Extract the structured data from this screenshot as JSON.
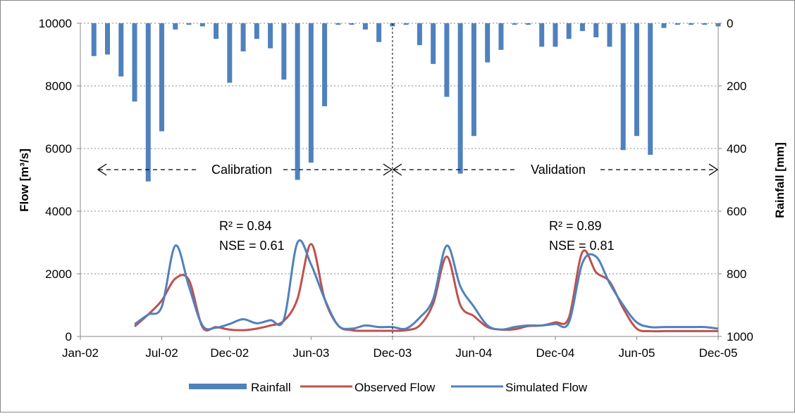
{
  "chart_data": {
    "type": "bar+line",
    "title": "",
    "xlabel": "",
    "ylabel": "Flow [m³/s]",
    "ylabel_right": "Rainfall [mm]",
    "ylim": [
      0,
      10000
    ],
    "ylim_right": [
      1000,
      0
    ],
    "y2_inverted": true,
    "xlim": [
      "2002-01",
      "2005-12"
    ],
    "x_ticks": [
      "Jan-02",
      "Jul-02",
      "Dec-02",
      "Jun-03",
      "Dec-03",
      "Jun-04",
      "Dec-04",
      "Jun-05",
      "Dec-05"
    ],
    "y_ticks": [
      "0",
      "2000",
      "4000",
      "6000",
      "8000",
      "10000"
    ],
    "y2_ticks": [
      "0",
      "200",
      "400",
      "600",
      "800",
      "1000"
    ],
    "grid": true,
    "legend": {
      "position": "bottom",
      "entries": [
        "Rainfall",
        "Observed Flow",
        "Simulated Flow"
      ]
    },
    "colors": {
      "rainfall": "#4F81BD",
      "observed": "#C0504D",
      "simulated": "#4F81BD"
    },
    "bars": {
      "series": "Rainfall",
      "months": [
        "2002-02",
        "2002-03",
        "2002-04",
        "2002-05",
        "2002-06",
        "2002-07",
        "2002-08",
        "2002-09",
        "2002-10",
        "2002-11",
        "2002-12",
        "2003-01",
        "2003-02",
        "2003-03",
        "2003-04",
        "2003-05",
        "2003-06",
        "2003-07",
        "2003-08",
        "2003-09",
        "2003-10",
        "2003-11",
        "2003-12",
        "2004-01",
        "2004-02",
        "2004-03",
        "2004-04",
        "2004-05",
        "2004-06",
        "2004-07",
        "2004-08",
        "2004-09",
        "2004-10",
        "2004-11",
        "2004-12",
        "2005-01",
        "2005-02",
        "2005-03",
        "2005-04",
        "2005-05",
        "2005-06",
        "2005-07",
        "2005-08",
        "2005-09",
        "2005-10",
        "2005-11",
        "2005-12"
      ],
      "values": [
        105,
        100,
        170,
        250,
        505,
        345,
        20,
        5,
        10,
        50,
        190,
        90,
        50,
        80,
        180,
        500,
        445,
        265,
        5,
        5,
        20,
        60,
        10,
        5,
        70,
        130,
        235,
        480,
        360,
        125,
        85,
        5,
        5,
        75,
        75,
        50,
        25,
        45,
        75,
        405,
        360,
        420,
        15,
        5,
        5,
        5,
        10
      ]
    },
    "series": [
      {
        "name": "Observed Flow",
        "x": [
          "2002-05",
          "2002-06",
          "2002-07",
          "2002-08",
          "2002-09",
          "2002-10",
          "2002-11",
          "2002-12",
          "2003-01",
          "2003-02",
          "2003-03",
          "2003-04",
          "2003-05",
          "2003-06",
          "2003-07",
          "2003-08",
          "2003-09",
          "2003-10",
          "2003-11",
          "2003-12",
          "2004-01",
          "2004-02",
          "2004-03",
          "2004-04",
          "2004-05",
          "2004-06",
          "2004-07",
          "2004-08",
          "2004-09",
          "2004-10",
          "2004-11",
          "2004-12",
          "2005-01",
          "2005-02",
          "2005-03",
          "2005-04",
          "2005-05",
          "2005-06",
          "2005-07",
          "2005-08",
          "2005-09",
          "2005-10",
          "2005-11",
          "2005-12"
        ],
        "values": [
          320,
          700,
          1150,
          1850,
          1800,
          300,
          300,
          220,
          200,
          250,
          350,
          500,
          1200,
          2950,
          1200,
          350,
          200,
          180,
          180,
          180,
          200,
          350,
          1050,
          2550,
          1000,
          650,
          300,
          220,
          230,
          330,
          350,
          450,
          600,
          2700,
          2050,
          1750,
          900,
          250,
          170,
          170,
          170,
          170,
          170,
          170
        ]
      },
      {
        "name": "Simulated Flow",
        "x": [
          "2002-05",
          "2002-06",
          "2002-07",
          "2002-08",
          "2002-09",
          "2002-10",
          "2002-11",
          "2002-12",
          "2003-01",
          "2003-02",
          "2003-03",
          "2003-04",
          "2003-05",
          "2003-06",
          "2003-07",
          "2003-08",
          "2003-09",
          "2003-10",
          "2003-11",
          "2003-12",
          "2004-01",
          "2004-02",
          "2004-03",
          "2004-04",
          "2004-05",
          "2004-06",
          "2004-07",
          "2004-08",
          "2004-09",
          "2004-10",
          "2004-11",
          "2004-12",
          "2005-01",
          "2005-02",
          "2005-03",
          "2005-04",
          "2005-05",
          "2005-06",
          "2005-07",
          "2005-08",
          "2005-09",
          "2005-10",
          "2005-11",
          "2005-12"
        ],
        "values": [
          390,
          700,
          950,
          2900,
          1600,
          350,
          280,
          400,
          550,
          420,
          520,
          550,
          3000,
          2300,
          1200,
          350,
          250,
          350,
          300,
          300,
          250,
          600,
          1200,
          2900,
          1600,
          950,
          350,
          220,
          300,
          350,
          350,
          400,
          450,
          2350,
          2550,
          1700,
          1000,
          450,
          300,
          300,
          300,
          300,
          300,
          250
        ]
      }
    ],
    "annotations": {
      "calibration_label": "Calibration",
      "validation_label": "Validation",
      "calibration_r2": "R² = 0.84",
      "calibration_nse": "NSE = 0.61",
      "validation_r2": "R² = 0.89",
      "validation_nse": "NSE = 0.81"
    }
  }
}
